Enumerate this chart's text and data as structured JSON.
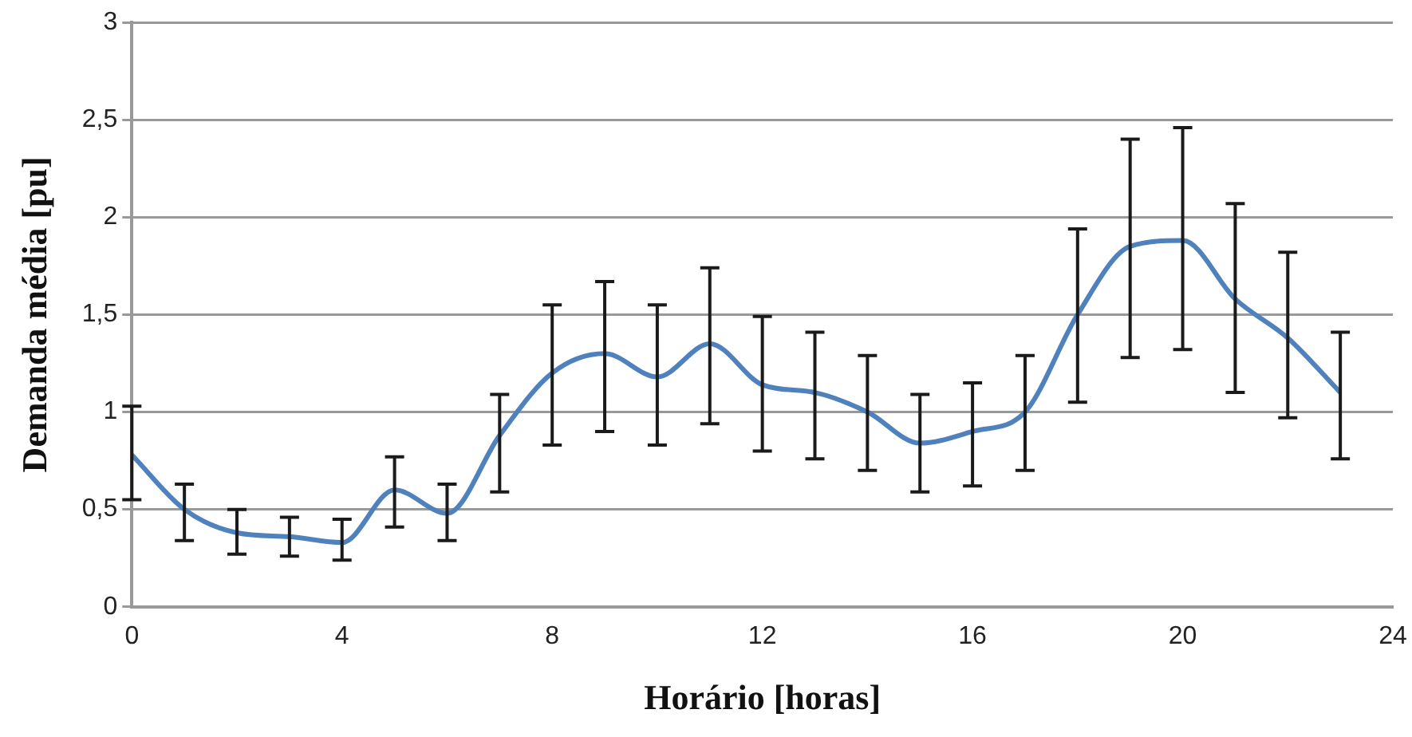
{
  "chart_data": {
    "type": "line",
    "xlabel": "Horário [horas]",
    "ylabel": "Demanda média [pu]",
    "x": [
      0,
      1,
      2,
      3,
      4,
      5,
      6,
      7,
      8,
      9,
      10,
      11,
      12,
      13,
      14,
      15,
      16,
      17,
      18,
      19,
      20,
      21,
      22,
      23
    ],
    "series": [
      {
        "color": "#4f81bd",
        "values": [
          0.78,
          0.5,
          0.38,
          0.36,
          0.33,
          0.6,
          0.48,
          0.88,
          1.2,
          1.3,
          1.18,
          1.35,
          1.14,
          1.1,
          1.0,
          0.84,
          0.9,
          1.0,
          1.5,
          1.85,
          1.88,
          1.58,
          1.38,
          1.1
        ],
        "errors": [
          [
            0.55,
            1.03
          ],
          [
            0.34,
            0.63
          ],
          [
            0.27,
            0.5
          ],
          [
            0.26,
            0.46
          ],
          [
            0.24,
            0.45
          ],
          [
            0.41,
            0.77
          ],
          [
            0.34,
            0.63
          ],
          [
            0.59,
            1.09
          ],
          [
            0.83,
            1.55
          ],
          [
            0.9,
            1.67
          ],
          [
            0.83,
            1.55
          ],
          [
            0.94,
            1.74
          ],
          [
            0.8,
            1.49
          ],
          [
            0.76,
            1.41
          ],
          [
            0.7,
            1.29
          ],
          [
            0.59,
            1.09
          ],
          [
            0.62,
            1.15
          ],
          [
            0.7,
            1.29
          ],
          [
            1.05,
            1.94
          ],
          [
            1.28,
            2.4
          ],
          [
            1.32,
            2.46
          ],
          [
            1.1,
            2.07
          ],
          [
            0.97,
            1.82
          ],
          [
            0.76,
            1.41
          ]
        ]
      }
    ],
    "xlim": [
      0,
      24
    ],
    "xticks": [
      0,
      4,
      8,
      12,
      16,
      20,
      24
    ],
    "ylim": [
      0,
      3
    ],
    "yticks": [
      0,
      {
        "value": 0.5,
        "label": "0,5"
      },
      1,
      {
        "value": 1.5,
        "label": "1,5"
      },
      2,
      {
        "value": 2.5,
        "label": "2,5"
      },
      3
    ],
    "grid": "y",
    "legend": false,
    "marker": "none",
    "line_style": "solid"
  }
}
